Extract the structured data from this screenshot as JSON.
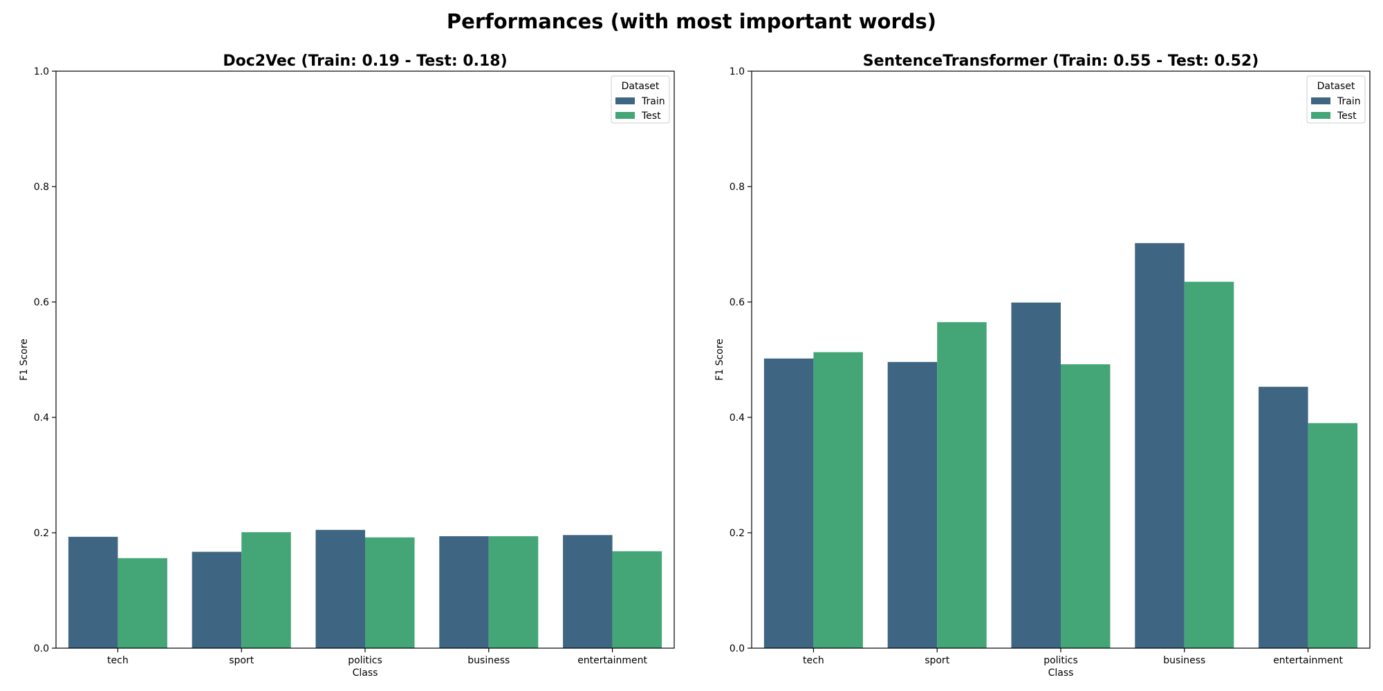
{
  "figure": {
    "title": "Performances (with most important words)"
  },
  "colors": {
    "train": "#3e6582",
    "test": "#44a677",
    "axis": "#000000",
    "legend_border": "#cccccc"
  },
  "chart_data": [
    {
      "type": "bar",
      "title": "Doc2Vec (Train: 0.19 - Test: 0.18)",
      "xlabel": "Class",
      "ylabel": "F1 Score",
      "ylim": [
        0,
        1.0
      ],
      "yticks": [
        "0.0",
        "0.2",
        "0.4",
        "0.6",
        "0.8",
        "1.0"
      ],
      "grid": false,
      "legend": {
        "title": "Dataset",
        "placement": "top-right",
        "entries": [
          "Train",
          "Test"
        ]
      },
      "categories": [
        "tech",
        "sport",
        "politics",
        "business",
        "entertainment"
      ],
      "series": [
        {
          "name": "Train",
          "values": [
            0.193,
            0.167,
            0.205,
            0.194,
            0.196
          ]
        },
        {
          "name": "Test",
          "values": [
            0.156,
            0.201,
            0.192,
            0.194,
            0.168
          ]
        }
      ]
    },
    {
      "type": "bar",
      "title": "SentenceTransformer (Train: 0.55 - Test: 0.52)",
      "xlabel": "Class",
      "ylabel": "F1 Score",
      "ylim": [
        0,
        1.0
      ],
      "yticks": [
        "0.0",
        "0.2",
        "0.4",
        "0.6",
        "0.8",
        "1.0"
      ],
      "grid": false,
      "legend": {
        "title": "Dataset",
        "placement": "top-right",
        "entries": [
          "Train",
          "Test"
        ]
      },
      "categories": [
        "tech",
        "sport",
        "politics",
        "business",
        "entertainment"
      ],
      "series": [
        {
          "name": "Train",
          "values": [
            0.502,
            0.496,
            0.599,
            0.702,
            0.453
          ]
        },
        {
          "name": "Test",
          "values": [
            0.513,
            0.565,
            0.492,
            0.635,
            0.39
          ]
        }
      ]
    }
  ]
}
